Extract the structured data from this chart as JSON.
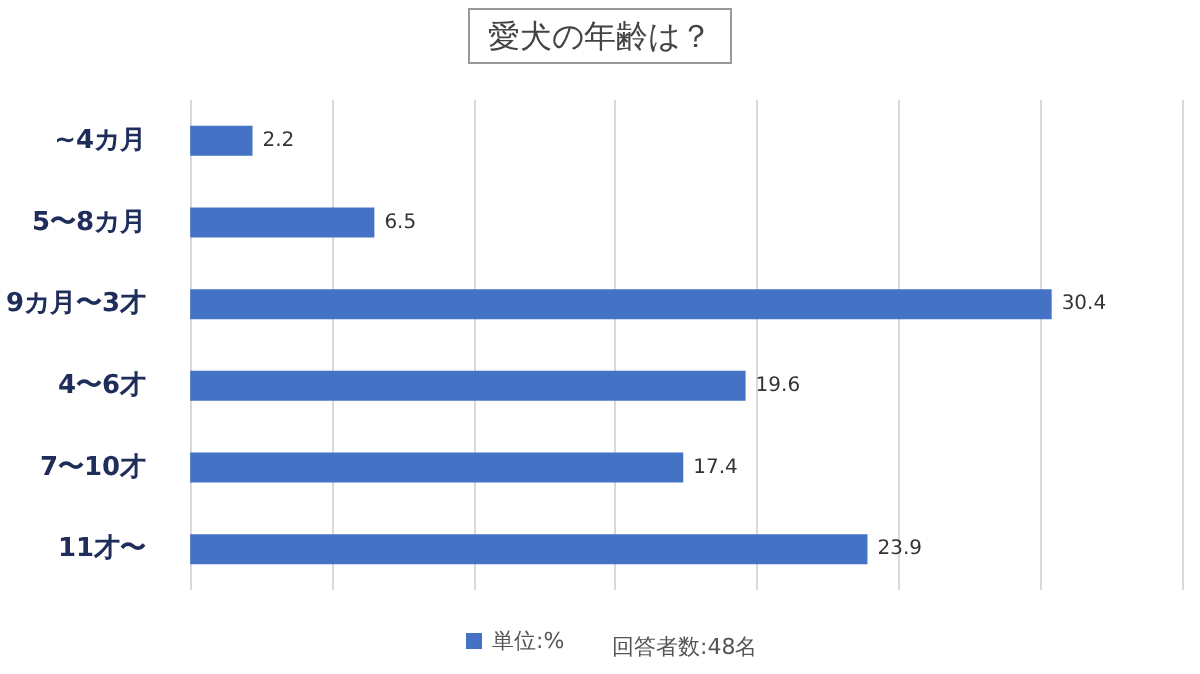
{
  "chart_data": {
    "type": "bar",
    "orientation": "horizontal",
    "title": "愛犬の年齢は？",
    "categories": [
      "~4カ月",
      "5〜8カ月",
      "9カ月〜3才",
      "4〜6才",
      "7〜10才",
      "11才〜"
    ],
    "series": [
      {
        "name": "単位:%",
        "color": "#4472c4",
        "values": [
          2.2,
          6.5,
          30.4,
          19.6,
          17.4,
          23.9
        ]
      }
    ],
    "xlim": [
      0,
      35
    ],
    "xticks": [
      {
        "value": 0,
        "label": null
      },
      {
        "value": 5,
        "label": null
      },
      {
        "value": 10,
        "label": null
      },
      {
        "value": 15,
        "label": null
      },
      {
        "value": 20,
        "label": null
      },
      {
        "value": 25,
        "label": null
      },
      {
        "value": 30,
        "label": null
      },
      {
        "value": 35,
        "label": null
      }
    ],
    "tick_labels": "y",
    "grid": "x",
    "legend": "bottom",
    "data_labels": true,
    "annotations": [
      "回答者数:48名"
    ]
  }
}
